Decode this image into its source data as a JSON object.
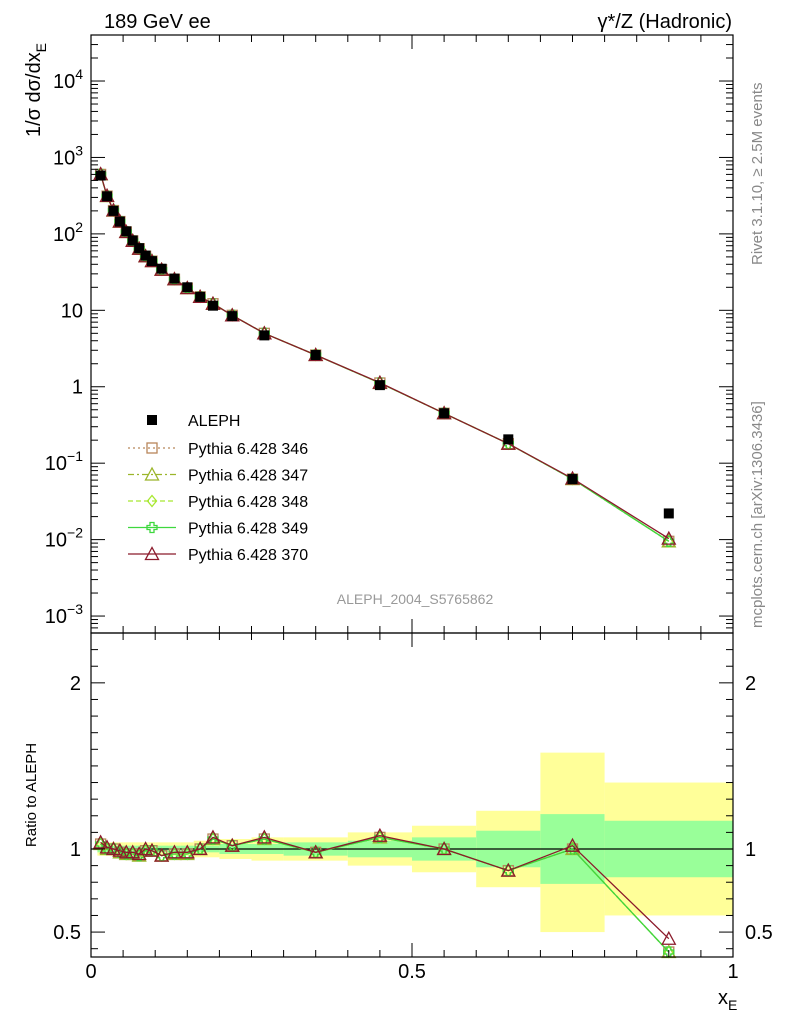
{
  "header": {
    "left": "189 GeV ee",
    "right": "γ*/Z (Hadronic)"
  },
  "side_labels": {
    "rivet": "Rivet 3.1.10, ≥ 2.5M events",
    "mcplots": "mcplots.cern.ch [arXiv:1306.3436]"
  },
  "analysis_id": "ALEPH_2004_S5765862",
  "colors": {
    "data": "#000000",
    "p346": "#b8865a",
    "p347": "#9bb52a",
    "p348": "#a8e830",
    "p349": "#3ed83e",
    "p370": "#8b1a2b",
    "band_inner": "#99ff99",
    "band_outer": "#ffff99"
  },
  "chart_data": [
    {
      "type": "scatter",
      "ylabel": "1/σ dσ/dx_E",
      "yscale": "log",
      "xlim": [
        0,
        1
      ],
      "ylim": [
        0.0006,
        40000
      ],
      "y_ticks": [
        {
          "value": 0.001,
          "mant": "10",
          "exp": "−3"
        },
        {
          "value": 0.01,
          "mant": "10",
          "exp": "−2"
        },
        {
          "value": 0.1,
          "mant": "10",
          "exp": "−1"
        },
        {
          "value": 1,
          "mant": "1",
          "exp": ""
        },
        {
          "value": 10,
          "mant": "10",
          "exp": ""
        },
        {
          "value": 100,
          "mant": "10",
          "exp": "2"
        },
        {
          "value": 1000,
          "mant": "10",
          "exp": "3"
        },
        {
          "value": 10000,
          "mant": "10",
          "exp": "4"
        }
      ],
      "legend_position": "center-left",
      "x": [
        0.015,
        0.025,
        0.035,
        0.045,
        0.055,
        0.065,
        0.075,
        0.085,
        0.095,
        0.11,
        0.13,
        0.15,
        0.17,
        0.19,
        0.22,
        0.27,
        0.35,
        0.45,
        0.55,
        0.65,
        0.75,
        0.9
      ],
      "data": {
        "name": "ALEPH",
        "values": [
          580,
          310,
          200,
          145,
          108,
          82,
          65,
          52,
          44,
          35,
          26,
          20,
          15,
          11.5,
          8.4,
          4.7,
          2.6,
          1.05,
          0.45,
          0.205,
          0.062,
          0.022
        ]
      },
      "series": [
        {
          "name": "Pythia 6.428 346",
          "key": "p346",
          "marker": "square-open",
          "dash": "2,3",
          "values": [
            600,
            312,
            202,
            145,
            106,
            81,
            64,
            51,
            44,
            34,
            25.5,
            19.5,
            15,
            12.2,
            8.6,
            5.0,
            2.6,
            1.12,
            0.45,
            0.18,
            0.062,
            0.0095
          ]
        },
        {
          "name": "Pythia 6.428 347",
          "key": "p347",
          "marker": "triangle-open",
          "dash": "6,3,2,3",
          "values": [
            600,
            312,
            202,
            145,
            106,
            81,
            64,
            51,
            44,
            34,
            25.5,
            19.5,
            15,
            12.2,
            8.6,
            5.0,
            2.6,
            1.12,
            0.45,
            0.18,
            0.062,
            0.0095
          ]
        },
        {
          "name": "Pythia 6.428 348",
          "key": "p348",
          "marker": "diamond-open",
          "dash": "5,3",
          "values": [
            600,
            312,
            202,
            145,
            106,
            81,
            64,
            51,
            44,
            34,
            25.5,
            19.5,
            15,
            12.2,
            8.6,
            5.0,
            2.6,
            1.12,
            0.45,
            0.18,
            0.062,
            0.0095
          ]
        },
        {
          "name": "Pythia 6.428 349",
          "key": "p349",
          "marker": "cross-open",
          "dash": "",
          "values": [
            600,
            312,
            202,
            145,
            106,
            81,
            64,
            51,
            44,
            34,
            25.5,
            19.5,
            15,
            12.2,
            8.6,
            5.0,
            2.6,
            1.12,
            0.45,
            0.18,
            0.062,
            0.0095
          ]
        },
        {
          "name": "Pythia 6.428 370",
          "key": "p370",
          "marker": "triangle-open",
          "dash": "",
          "values": [
            605,
            315,
            203,
            145,
            106,
            81,
            64,
            51,
            44,
            34,
            25.5,
            19.5,
            15,
            12.2,
            8.6,
            5.0,
            2.6,
            1.13,
            0.45,
            0.18,
            0.063,
            0.0103
          ]
        }
      ]
    },
    {
      "type": "scatter",
      "ylabel": "Ratio to ALEPH",
      "xlabel": "x_E",
      "xlim": [
        0,
        1
      ],
      "ylim": [
        0.35,
        2.3
      ],
      "y_ticks": [
        0.5,
        1,
        2
      ],
      "y_tick_labels": [
        "0.5",
        "1",
        "2"
      ],
      "x_ticks": [
        0,
        0.5,
        1
      ],
      "x_tick_labels": [
        "0",
        "0.5",
        "1"
      ],
      "bins": [
        {
          "lo": 0.01,
          "hi": 0.02,
          "in_lo": 0.98,
          "in_hi": 1.02,
          "out_lo": 0.96,
          "out_hi": 1.04
        },
        {
          "lo": 0.02,
          "hi": 0.03,
          "in_lo": 0.98,
          "in_hi": 1.02,
          "out_lo": 0.96,
          "out_hi": 1.04
        },
        {
          "lo": 0.03,
          "hi": 0.04,
          "in_lo": 0.98,
          "in_hi": 1.02,
          "out_lo": 0.96,
          "out_hi": 1.04
        },
        {
          "lo": 0.04,
          "hi": 0.05,
          "in_lo": 0.98,
          "in_hi": 1.02,
          "out_lo": 0.96,
          "out_hi": 1.04
        },
        {
          "lo": 0.05,
          "hi": 0.06,
          "in_lo": 0.98,
          "in_hi": 1.02,
          "out_lo": 0.96,
          "out_hi": 1.04
        },
        {
          "lo": 0.06,
          "hi": 0.07,
          "in_lo": 0.98,
          "in_hi": 1.02,
          "out_lo": 0.96,
          "out_hi": 1.04
        },
        {
          "lo": 0.07,
          "hi": 0.08,
          "in_lo": 0.98,
          "in_hi": 1.02,
          "out_lo": 0.96,
          "out_hi": 1.04
        },
        {
          "lo": 0.08,
          "hi": 0.09,
          "in_lo": 0.98,
          "in_hi": 1.02,
          "out_lo": 0.96,
          "out_hi": 1.04
        },
        {
          "lo": 0.09,
          "hi": 0.1,
          "in_lo": 0.98,
          "in_hi": 1.02,
          "out_lo": 0.96,
          "out_hi": 1.04
        },
        {
          "lo": 0.1,
          "hi": 0.12,
          "in_lo": 0.98,
          "in_hi": 1.02,
          "out_lo": 0.96,
          "out_hi": 1.04
        },
        {
          "lo": 0.12,
          "hi": 0.14,
          "in_lo": 0.98,
          "in_hi": 1.02,
          "out_lo": 0.96,
          "out_hi": 1.04
        },
        {
          "lo": 0.14,
          "hi": 0.16,
          "in_lo": 0.98,
          "in_hi": 1.02,
          "out_lo": 0.96,
          "out_hi": 1.04
        },
        {
          "lo": 0.16,
          "hi": 0.18,
          "in_lo": 0.98,
          "in_hi": 1.02,
          "out_lo": 0.95,
          "out_hi": 1.05
        },
        {
          "lo": 0.18,
          "hi": 0.2,
          "in_lo": 0.98,
          "in_hi": 1.02,
          "out_lo": 0.95,
          "out_hi": 1.05
        },
        {
          "lo": 0.2,
          "hi": 0.25,
          "in_lo": 0.97,
          "in_hi": 1.03,
          "out_lo": 0.94,
          "out_hi": 1.06
        },
        {
          "lo": 0.25,
          "hi": 0.3,
          "in_lo": 0.97,
          "in_hi": 1.03,
          "out_lo": 0.93,
          "out_hi": 1.07
        },
        {
          "lo": 0.3,
          "hi": 0.4,
          "in_lo": 0.96,
          "in_hi": 1.04,
          "out_lo": 0.93,
          "out_hi": 1.07
        },
        {
          "lo": 0.4,
          "hi": 0.5,
          "in_lo": 0.95,
          "in_hi": 1.05,
          "out_lo": 0.9,
          "out_hi": 1.1
        },
        {
          "lo": 0.5,
          "hi": 0.6,
          "in_lo": 0.93,
          "in_hi": 1.07,
          "out_lo": 0.86,
          "out_hi": 1.14
        },
        {
          "lo": 0.6,
          "hi": 0.7,
          "in_lo": 0.89,
          "in_hi": 1.11,
          "out_lo": 0.77,
          "out_hi": 1.23
        },
        {
          "lo": 0.7,
          "hi": 0.8,
          "in_lo": 0.79,
          "in_hi": 1.21,
          "out_lo": 0.5,
          "out_hi": 1.58
        },
        {
          "lo": 0.8,
          "hi": 1.0,
          "in_lo": 0.83,
          "in_hi": 1.17,
          "out_lo": 0.6,
          "out_hi": 1.4
        }
      ],
      "series": [
        {
          "name": "Pythia 6.428 346",
          "key": "p346",
          "marker": "square-open",
          "dash": "2,3",
          "values": [
            1.03,
            1.0,
            1.0,
            0.98,
            0.97,
            0.97,
            0.96,
            0.99,
            0.99,
            0.96,
            0.97,
            0.97,
            1.0,
            1.06,
            1.02,
            1.06,
            0.98,
            1.07,
            1.0,
            0.87,
            1.0,
            0.38
          ]
        },
        {
          "name": "Pythia 6.428 347",
          "key": "p347",
          "marker": "triangle-open",
          "dash": "6,3,2,3",
          "values": [
            1.03,
            1.0,
            1.0,
            0.98,
            0.97,
            0.97,
            0.96,
            0.99,
            0.99,
            0.96,
            0.97,
            0.97,
            1.0,
            1.06,
            1.02,
            1.06,
            0.98,
            1.07,
            1.0,
            0.87,
            1.0,
            0.38
          ]
        },
        {
          "name": "Pythia 6.428 348",
          "key": "p348",
          "marker": "diamond-open",
          "dash": "5,3",
          "values": [
            1.03,
            1.0,
            1.0,
            0.98,
            0.97,
            0.97,
            0.96,
            0.99,
            0.99,
            0.96,
            0.97,
            0.97,
            1.0,
            1.06,
            1.02,
            1.06,
            0.98,
            1.07,
            1.0,
            0.87,
            1.0,
            0.38
          ]
        },
        {
          "name": "Pythia 6.428 349",
          "key": "p349",
          "marker": "cross-open",
          "dash": "",
          "values": [
            1.03,
            1.0,
            1.0,
            0.98,
            0.97,
            0.97,
            0.96,
            0.99,
            0.99,
            0.96,
            0.97,
            0.97,
            1.0,
            1.06,
            1.02,
            1.06,
            0.98,
            1.07,
            1.0,
            0.87,
            1.0,
            0.38
          ]
        },
        {
          "name": "Pythia 6.428 370",
          "key": "p370",
          "marker": "triangle-open",
          "dash": "",
          "values": [
            1.04,
            1.01,
            1.0,
            0.99,
            0.98,
            0.98,
            0.97,
            1.0,
            0.99,
            0.96,
            0.98,
            0.98,
            1.0,
            1.07,
            1.02,
            1.07,
            0.98,
            1.08,
            1.0,
            0.87,
            1.02,
            0.46
          ]
        }
      ]
    }
  ]
}
